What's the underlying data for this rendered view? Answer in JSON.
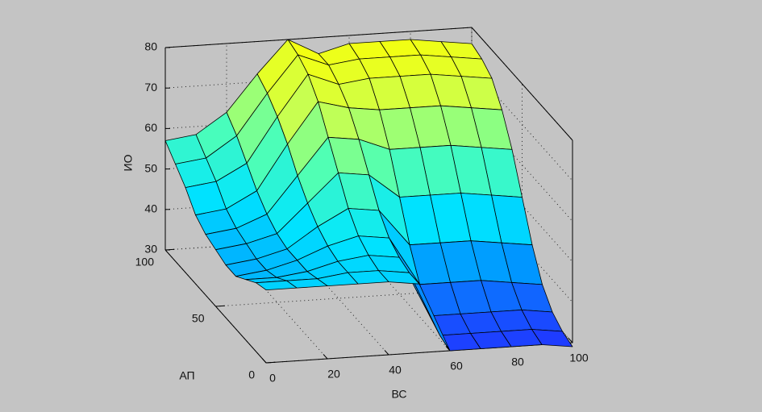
{
  "chart_data": {
    "type": "surface",
    "xlabel": "ВС",
    "ylabel": "АП",
    "zlabel": "ИО",
    "x": [
      0,
      10,
      20,
      30,
      40,
      50,
      60,
      70,
      80,
      90,
      100
    ],
    "y": [
      0,
      10,
      20,
      30,
      40,
      50,
      60,
      70,
      80,
      90,
      100
    ],
    "z": [
      [
        48,
        48,
        48,
        48,
        48,
        47,
        30,
        30,
        30,
        30,
        29
      ],
      [
        47,
        47,
        47,
        48,
        48,
        47,
        31,
        31,
        31,
        31,
        30
      ],
      [
        45,
        45,
        46,
        48,
        49,
        48,
        33,
        33,
        33,
        33,
        32
      ],
      [
        43,
        44,
        46,
        49,
        51,
        50,
        38,
        38,
        38,
        37,
        36
      ],
      [
        43,
        44,
        46,
        51,
        55,
        54,
        45,
        45,
        45,
        44,
        43
      ],
      [
        44,
        45,
        47,
        54,
        61,
        60,
        54,
        54,
        54,
        53,
        52
      ],
      [
        45,
        46,
        49,
        58,
        67,
        66,
        63,
        63,
        63,
        62,
        61
      ],
      [
        47,
        48,
        52,
        63,
        73,
        71,
        70,
        70,
        70,
        69,
        68
      ],
      [
        51,
        52,
        56,
        67,
        77,
        74,
        75,
        75,
        75,
        74,
        73
      ],
      [
        54,
        55,
        60,
        70,
        79,
        76,
        77,
        77,
        77,
        76,
        75
      ],
      [
        57,
        58,
        63,
        72,
        80,
        76,
        78,
        78,
        78,
        77,
        76
      ]
    ],
    "xlim": [
      0,
      100
    ],
    "ylim": [
      0,
      100
    ],
    "zlim": [
      30,
      80
    ],
    "xticks": [
      0,
      20,
      40,
      60,
      80,
      100
    ],
    "yticks": [
      0,
      50,
      100
    ],
    "zticks": [
      30,
      40,
      50,
      60,
      70,
      80
    ],
    "grid": true,
    "colormap": [
      "#1e3cff",
      "#0096ff",
      "#00e6ff",
      "#50ffb4",
      "#c8ff50",
      "#ffff00"
    ]
  }
}
